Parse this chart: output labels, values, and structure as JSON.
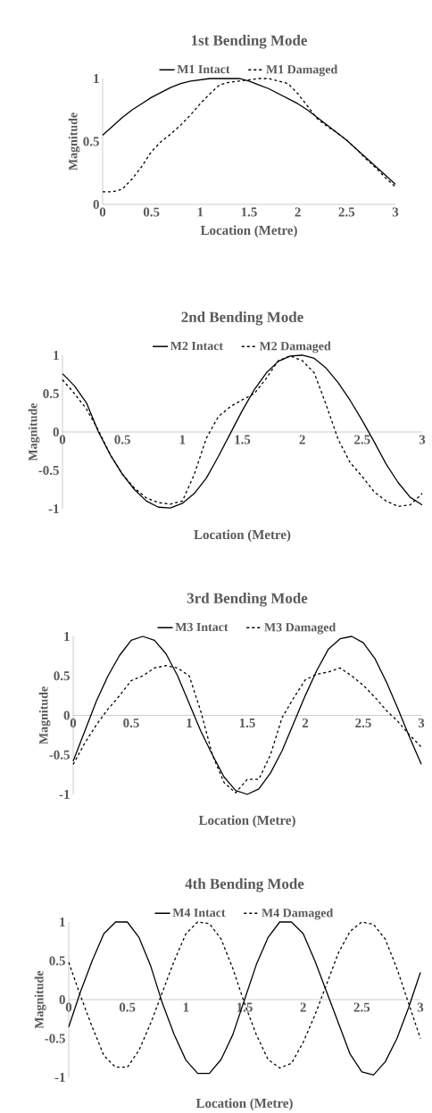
{
  "chart_data": [
    {
      "type": "line",
      "title": "1st Bending Mode",
      "xlabel": "Location (Metre)",
      "ylabel": "Magnitude",
      "legend": "top",
      "grid": false,
      "x": [
        0,
        0.1,
        0.2,
        0.3,
        0.4,
        0.5,
        0.6,
        0.7,
        0.8,
        0.9,
        1.0,
        1.1,
        1.2,
        1.3,
        1.4,
        1.5,
        1.6,
        1.7,
        1.8,
        1.9,
        2.0,
        2.1,
        2.2,
        2.3,
        2.4,
        2.5,
        2.6,
        2.7,
        2.8,
        2.9,
        3.0
      ],
      "xlim": [
        0,
        3
      ],
      "xticks": [
        0,
        0.5,
        1,
        1.5,
        2,
        2.5,
        3
      ],
      "ylim": [
        0,
        1
      ],
      "yticks": [
        0,
        0.5,
        1
      ],
      "series": [
        {
          "name": "M1 Intact",
          "color": "#000000",
          "line_style": "solid",
          "values": [
            0.55,
            0.62,
            0.69,
            0.75,
            0.8,
            0.85,
            0.89,
            0.93,
            0.96,
            0.98,
            0.99,
            1.0,
            1.0,
            1.0,
            1.0,
            0.98,
            0.95,
            0.92,
            0.88,
            0.84,
            0.8,
            0.75,
            0.69,
            0.63,
            0.57,
            0.51,
            0.44,
            0.37,
            0.3,
            0.23,
            0.16
          ]
        },
        {
          "name": "M1 Damaged",
          "color": "#000000",
          "line_style": "dashed",
          "values": [
            0.1,
            0.1,
            0.12,
            0.2,
            0.3,
            0.42,
            0.5,
            0.56,
            0.63,
            0.71,
            0.8,
            0.88,
            0.95,
            0.97,
            0.98,
            0.99,
            1.0,
            1.0,
            0.98,
            0.96,
            0.88,
            0.78,
            0.68,
            0.62,
            0.57,
            0.51,
            0.44,
            0.36,
            0.29,
            0.21,
            0.14
          ]
        }
      ]
    },
    {
      "type": "line",
      "title": "2nd Bending Mode",
      "xlabel": "Location (Metre)",
      "ylabel": "Magnitude",
      "legend": "top",
      "grid": false,
      "x": [
        0,
        0.1,
        0.2,
        0.3,
        0.4,
        0.5,
        0.6,
        0.7,
        0.8,
        0.9,
        1.0,
        1.1,
        1.2,
        1.3,
        1.4,
        1.5,
        1.6,
        1.7,
        1.8,
        1.9,
        2.0,
        2.1,
        2.2,
        2.3,
        2.4,
        2.5,
        2.6,
        2.7,
        2.8,
        2.9,
        3.0
      ],
      "xlim": [
        0,
        3
      ],
      "xticks": [
        0,
        0.5,
        1,
        1.5,
        2,
        2.5,
        3
      ],
      "ylim": [
        -1,
        1
      ],
      "yticks": [
        -1,
        -0.5,
        0,
        0.5,
        1
      ],
      "series": [
        {
          "name": "M2 Intact",
          "color": "#000000",
          "line_style": "solid",
          "values": [
            0.76,
            0.6,
            0.38,
            0.0,
            -0.3,
            -0.55,
            -0.75,
            -0.9,
            -0.98,
            -0.99,
            -0.93,
            -0.8,
            -0.6,
            -0.32,
            -0.02,
            0.28,
            0.55,
            0.77,
            0.92,
            0.99,
            1.0,
            0.96,
            0.83,
            0.64,
            0.41,
            0.15,
            -0.13,
            -0.42,
            -0.66,
            -0.85,
            -0.95
          ]
        },
        {
          "name": "M2 Damaged",
          "color": "#000000",
          "line_style": "dashed",
          "values": [
            0.68,
            0.5,
            0.3,
            0.02,
            -0.3,
            -0.55,
            -0.73,
            -0.86,
            -0.92,
            -0.94,
            -0.9,
            -0.55,
            -0.08,
            0.2,
            0.33,
            0.42,
            0.5,
            0.7,
            0.93,
            0.99,
            0.93,
            0.77,
            0.35,
            -0.1,
            -0.4,
            -0.58,
            -0.78,
            -0.9,
            -0.97,
            -0.95,
            -0.8
          ]
        }
      ]
    },
    {
      "type": "line",
      "title": "3rd Bending Mode",
      "xlabel": "Location (Metre)",
      "ylabel": "Magnitude",
      "legend": "top",
      "grid": false,
      "x": [
        0,
        0.1,
        0.2,
        0.3,
        0.4,
        0.5,
        0.6,
        0.7,
        0.8,
        0.9,
        1.0,
        1.1,
        1.2,
        1.3,
        1.4,
        1.5,
        1.6,
        1.7,
        1.8,
        1.9,
        2.0,
        2.1,
        2.2,
        2.3,
        2.4,
        2.5,
        2.6,
        2.7,
        2.8,
        2.9,
        3.0
      ],
      "xlim": [
        0,
        3
      ],
      "xticks": [
        0,
        0.5,
        1,
        1.5,
        2,
        2.5,
        3
      ],
      "ylim": [
        -1,
        1
      ],
      "yticks": [
        -1,
        -0.5,
        0,
        0.5,
        1
      ],
      "series": [
        {
          "name": "M3 Intact",
          "color": "#000000",
          "line_style": "solid",
          "values": [
            -0.58,
            -0.2,
            0.18,
            0.5,
            0.76,
            0.95,
            1.0,
            0.95,
            0.78,
            0.5,
            0.15,
            -0.2,
            -0.5,
            -0.78,
            -0.95,
            -1.0,
            -0.93,
            -0.73,
            -0.45,
            -0.1,
            0.25,
            0.57,
            0.84,
            0.97,
            1.0,
            0.92,
            0.72,
            0.42,
            0.08,
            -0.28,
            -0.62
          ]
        },
        {
          "name": "M3 Damaged",
          "color": "#000000",
          "line_style": "dashed",
          "values": [
            -0.62,
            -0.35,
            -0.12,
            0.08,
            0.25,
            0.44,
            0.5,
            0.6,
            0.63,
            0.6,
            0.5,
            0.05,
            -0.5,
            -0.85,
            -0.98,
            -0.81,
            -0.81,
            -0.5,
            -0.03,
            0.22,
            0.45,
            0.52,
            0.55,
            0.6,
            0.5,
            0.38,
            0.23,
            0.06,
            -0.08,
            -0.25,
            -0.4
          ]
        }
      ]
    },
    {
      "type": "line",
      "title": "4th Bending Mode",
      "xlabel": "Location (Metre)",
      "ylabel": "Magnitude",
      "legend": "top",
      "grid": false,
      "x": [
        0,
        0.1,
        0.2,
        0.3,
        0.4,
        0.5,
        0.6,
        0.7,
        0.8,
        0.9,
        1.0,
        1.1,
        1.2,
        1.3,
        1.4,
        1.5,
        1.6,
        1.7,
        1.8,
        1.9,
        2.0,
        2.1,
        2.2,
        2.3,
        2.4,
        2.5,
        2.6,
        2.7,
        2.8,
        2.9,
        3.0
      ],
      "xlim": [
        0,
        3
      ],
      "xticks": [
        0,
        0.5,
        1,
        1.5,
        2,
        2.5,
        3
      ],
      "ylim": [
        -1,
        1
      ],
      "yticks": [
        -1,
        -0.5,
        0,
        0.5,
        1
      ],
      "series": [
        {
          "name": "M4 Intact",
          "color": "#000000",
          "line_style": "solid",
          "values": [
            -0.35,
            0.1,
            0.5,
            0.85,
            1.0,
            1.0,
            0.8,
            0.43,
            -0.05,
            -0.45,
            -0.78,
            -0.95,
            -0.95,
            -0.77,
            -0.45,
            0.0,
            0.45,
            0.8,
            1.0,
            1.0,
            0.85,
            0.5,
            0.1,
            -0.3,
            -0.7,
            -0.93,
            -0.97,
            -0.8,
            -0.5,
            -0.1,
            0.35
          ]
        },
        {
          "name": "M4 Damaged",
          "color": "#000000",
          "line_style": "dashed",
          "values": [
            0.48,
            0.05,
            -0.35,
            -0.72,
            -0.87,
            -0.87,
            -0.65,
            -0.3,
            0.1,
            0.5,
            0.85,
            1.0,
            0.98,
            0.78,
            0.4,
            -0.05,
            -0.45,
            -0.77,
            -0.88,
            -0.82,
            -0.55,
            -0.2,
            0.2,
            0.6,
            0.88,
            1.0,
            0.97,
            0.78,
            0.4,
            -0.05,
            -0.5
          ]
        }
      ]
    }
  ]
}
